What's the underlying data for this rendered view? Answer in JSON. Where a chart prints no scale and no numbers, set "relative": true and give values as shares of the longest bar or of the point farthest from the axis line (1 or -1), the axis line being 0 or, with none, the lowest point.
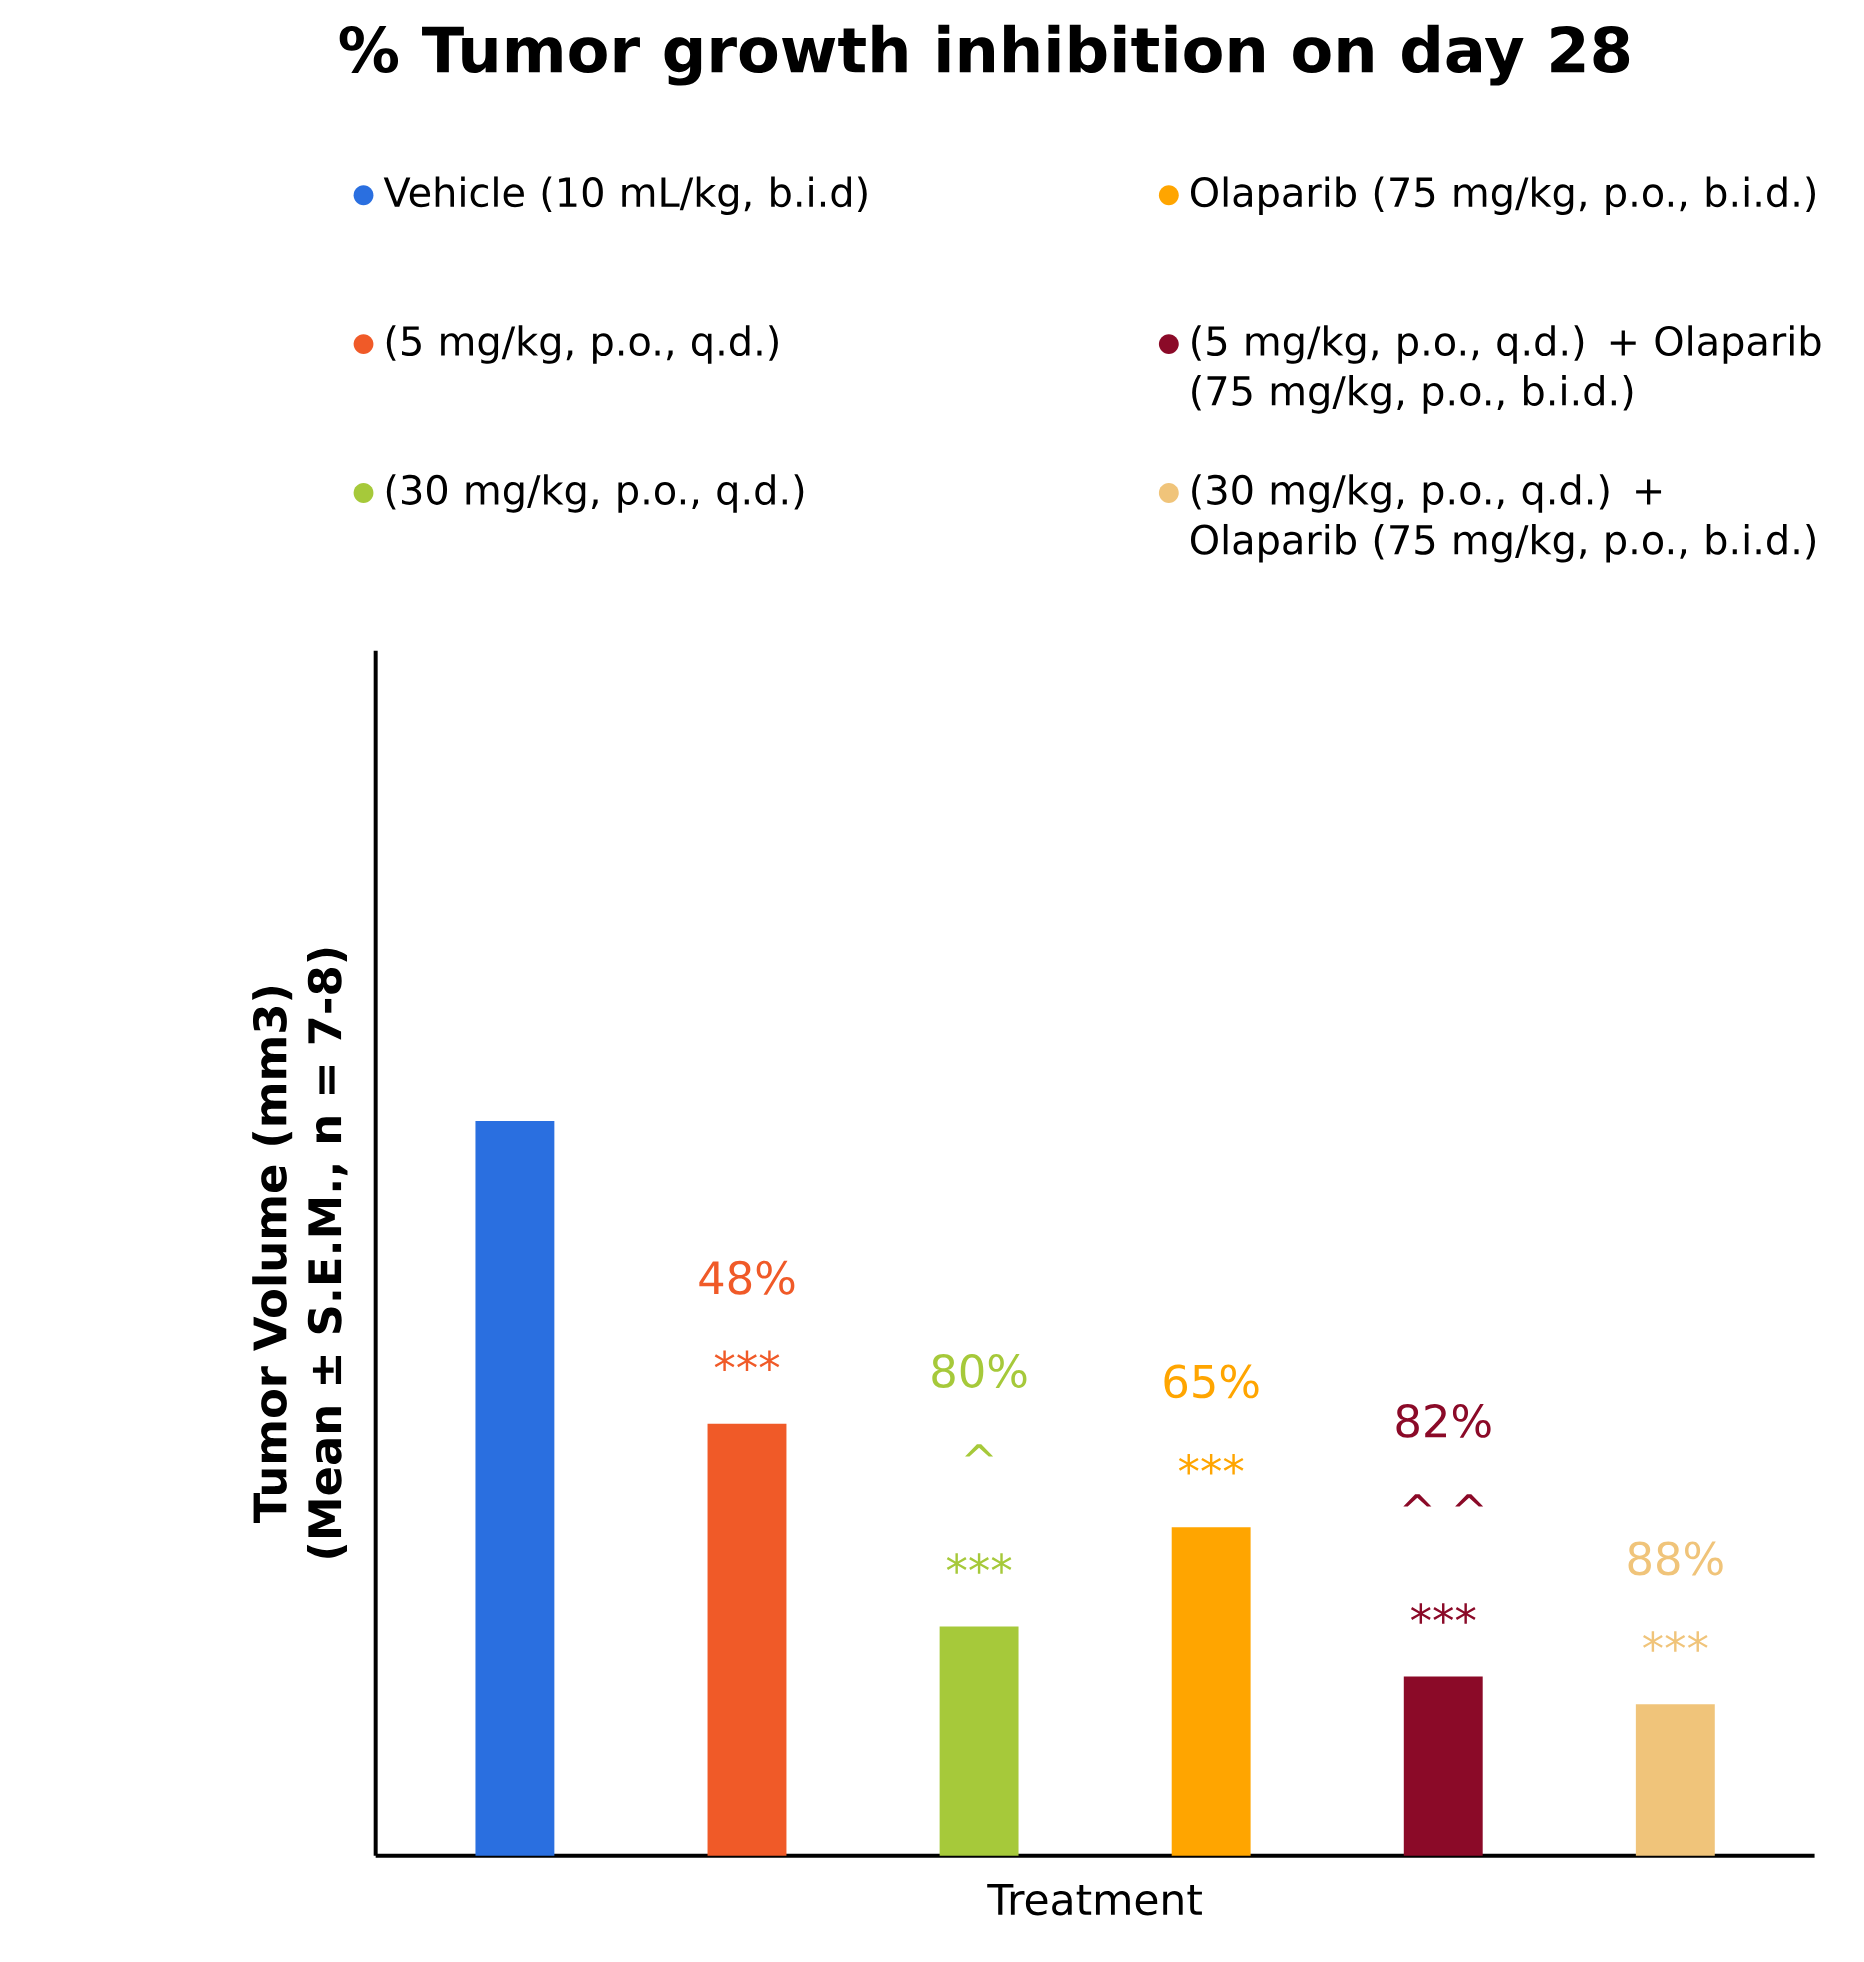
{
  "chart_data": {
    "type": "bar",
    "title": "% Tumor growth inhibition on day 28",
    "xlabel": "Treatment",
    "ylabel": "Tumor Volume (mm3) (Mean ± S.E.M., n = 7-8)",
    "relative": true,
    "stacked": true,
    "legend": "top",
    "categories": [
      null,
      null,
      null,
      null,
      null,
      null
    ],
    "series": [
      {
        "name": "Vehicle (10 mL/kg, b.i.d)",
        "color": "#2a6fe0",
        "values": [
          1,
          null,
          null,
          null,
          null,
          null
        ]
      },
      {
        "name": "(5 mg/kg, p.o., q.d.)",
        "color": "#f05a28",
        "values": [
          null,
          0.588,
          null,
          null,
          null,
          null
        ]
      },
      {
        "name": "(30 mg/kg, p.o., q.d.)",
        "color": "#a6c93a",
        "values": [
          null,
          null,
          0.312,
          null,
          null,
          null
        ]
      },
      {
        "name": "Olaparib (75 mg/kg, p.o., b.i.d.)",
        "color": "#ffa500",
        "values": [
          null,
          null,
          null,
          0.447,
          null,
          null
        ]
      },
      {
        "name": "(5 mg/kg, p.o., q.d.) + Olaparib (75 mg/kg, p.o., b.i.d.)",
        "color": "#8b0a28",
        "values": [
          null,
          null,
          null,
          null,
          0.244,
          null
        ]
      },
      {
        "name": "(30 mg/kg, p.o., q.d.) + Olaparib (75 mg/kg, p.o., b.i.d.)",
        "color": "#f0c47a",
        "values": [
          null,
          null,
          null,
          null,
          null,
          0.206
        ]
      }
    ],
    "annotations": [
      "48%",
      "***",
      "80%",
      "^",
      "***",
      "65%",
      "***",
      "82%",
      "^ ^",
      "***",
      "88%",
      "***"
    ]
  }
}
